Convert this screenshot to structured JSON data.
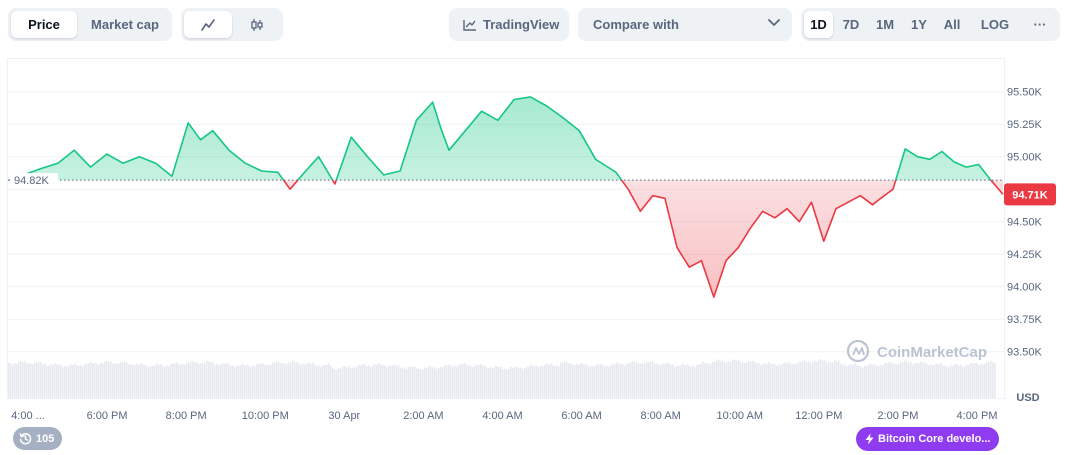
{
  "toolbar": {
    "view_tabs": [
      {
        "label": "Price",
        "active": true
      },
      {
        "label": "Market cap",
        "active": false
      }
    ],
    "chart_style": [
      {
        "icon": "line-chart-icon",
        "active": true
      },
      {
        "icon": "candlestick-icon",
        "active": false
      }
    ],
    "tradingview_label": "TradingView",
    "compare_label": "Compare with",
    "ranges": [
      {
        "label": "1D",
        "active": true
      },
      {
        "label": "7D",
        "active": false
      },
      {
        "label": "1M",
        "active": false
      },
      {
        "label": "1Y",
        "active": false
      },
      {
        "label": "All",
        "active": false
      },
      {
        "label": "LOG",
        "active": false
      }
    ],
    "more_label": "···"
  },
  "chart_data": {
    "type": "area",
    "y_ticks": [
      "95.50K",
      "95.25K",
      "95.00K",
      "94.75K",
      "94.50K",
      "94.25K",
      "94.00K",
      "93.75K",
      "93.50K"
    ],
    "y_tick_values": [
      95500,
      95250,
      95000,
      94750,
      94500,
      94250,
      94000,
      93750,
      93500
    ],
    "x_ticks": [
      "4:00 ...",
      "6:00 PM",
      "8:00 PM",
      "10:00 PM",
      "30 Apr",
      "2:00 AM",
      "4:00 AM",
      "6:00 AM",
      "8:00 AM",
      "10:00 AM",
      "12:00 PM",
      "2:00 PM",
      "4:00 PM"
    ],
    "x_tick_hours": [
      0,
      2,
      4,
      6,
      8,
      10,
      12,
      14,
      16,
      18,
      20,
      22,
      24
    ],
    "x_range_hours": [
      -0.4,
      24.0
    ],
    "reference_label": "94.82K",
    "reference_value": 94820,
    "current_label": "94.71K",
    "current_value": 94710,
    "unit_label": "USD",
    "watermark": "CoinMarketCap",
    "colors": {
      "up": "#16c784",
      "down": "#ea3943",
      "badge": "#ea3943"
    },
    "ylim": [
      93500,
      95550
    ],
    "price_x": [
      -0.4,
      0.4,
      0.8,
      1.2,
      1.6,
      2.0,
      2.4,
      2.8,
      3.2,
      3.6,
      4.0,
      4.3,
      4.6,
      5.0,
      5.4,
      5.8,
      6.2,
      6.5,
      6.8,
      7.2,
      7.6,
      8.0,
      8.4,
      8.8,
      9.2,
      9.6,
      10.0,
      10.2,
      10.4,
      10.8,
      11.2,
      11.6,
      12.0,
      12.4,
      12.8,
      13.2,
      13.6,
      14.0,
      14.2,
      14.5,
      14.8,
      15.1,
      15.4,
      15.7,
      16.0,
      16.3,
      16.6,
      16.9,
      17.2,
      17.5,
      17.8,
      18.1,
      18.4,
      18.7,
      19.0,
      19.3,
      19.6,
      19.9,
      20.2,
      20.5,
      20.8,
      21.0,
      21.3,
      21.6,
      21.9,
      22.2,
      22.5,
      22.8,
      23.1,
      23.4,
      23.7,
      24.0
    ],
    "price_y": [
      94820,
      94910,
      94950,
      95050,
      94920,
      95020,
      94950,
      95000,
      94950,
      94850,
      95260,
      95130,
      95200,
      95050,
      94950,
      94890,
      94880,
      94750,
      94860,
      95000,
      94790,
      95150,
      95000,
      94860,
      94890,
      95280,
      95420,
      95220,
      95050,
      95200,
      95350,
      95280,
      95440,
      95460,
      95390,
      95300,
      95200,
      94980,
      94940,
      94880,
      94750,
      94580,
      94700,
      94680,
      94300,
      94150,
      94200,
      93920,
      94200,
      94300,
      94450,
      94580,
      94530,
      94600,
      94500,
      94650,
      94350,
      94600,
      94650,
      94700,
      94630,
      94680,
      94750,
      95060,
      95000,
      94980,
      95040,
      94960,
      94920,
      94940,
      94820,
      94710
    ],
    "volume_level": 0.74
  },
  "badges": {
    "count_label": "105",
    "news_label": "Bitcoin Core develo..."
  }
}
